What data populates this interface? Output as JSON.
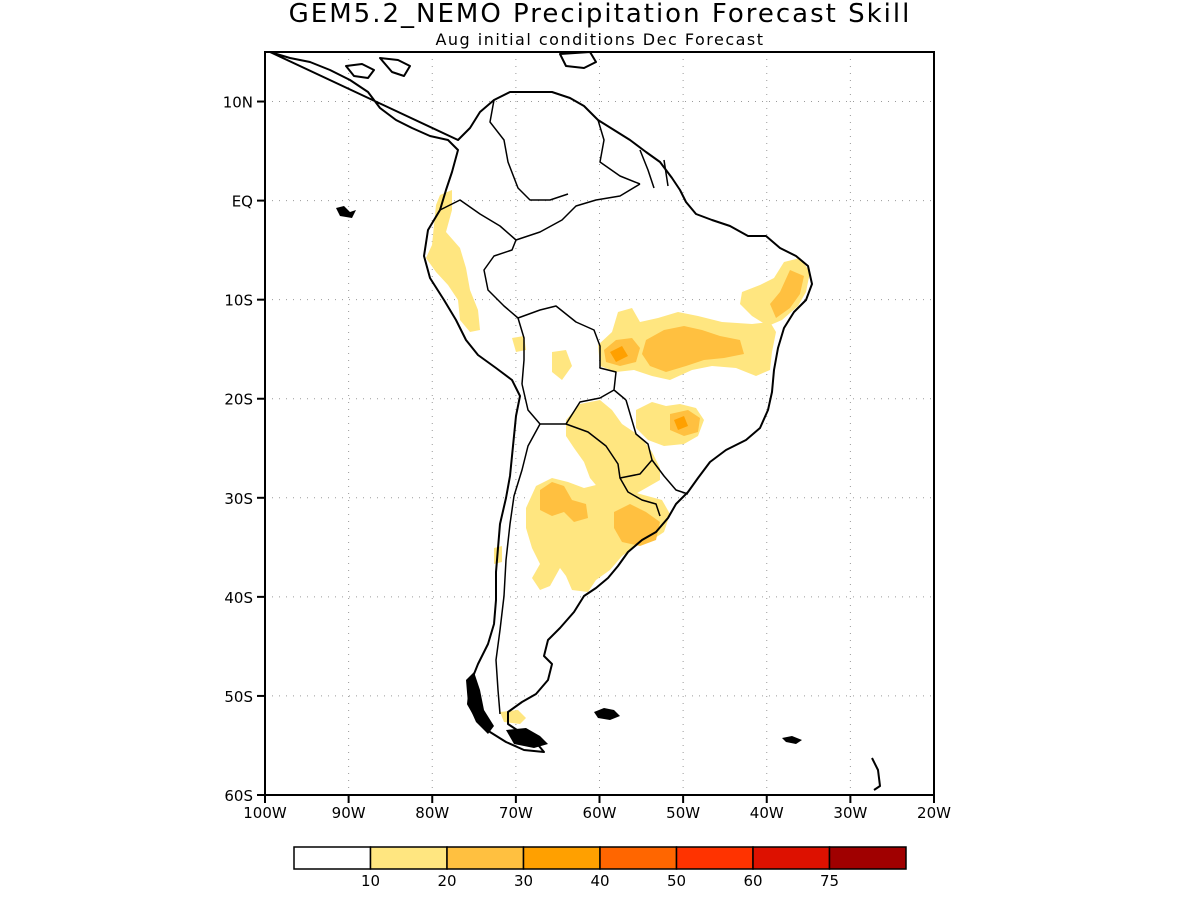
{
  "title": "GEM5.2_NEMO Precipitation Forecast Skill",
  "subtitle": "Aug initial conditions  Dec Forecast",
  "map": {
    "region": "South America",
    "projection": "lat-lon",
    "lon_range": [
      -100,
      -20
    ],
    "lat_range": [
      -60,
      15
    ],
    "gridlines": "dotted",
    "lat_ticks": [
      {
        "value": 10,
        "label": "10N"
      },
      {
        "value": 0,
        "label": "EQ"
      },
      {
        "value": -10,
        "label": "10S"
      },
      {
        "value": -20,
        "label": "20S"
      },
      {
        "value": -30,
        "label": "30S"
      },
      {
        "value": -40,
        "label": "40S"
      },
      {
        "value": -50,
        "label": "50S"
      },
      {
        "value": -60,
        "label": "60S"
      }
    ],
    "lon_ticks": [
      {
        "value": -100,
        "label": "100W"
      },
      {
        "value": -90,
        "label": "90W"
      },
      {
        "value": -80,
        "label": "80W"
      },
      {
        "value": -70,
        "label": "70W"
      },
      {
        "value": -60,
        "label": "60W"
      },
      {
        "value": -50,
        "label": "50W"
      },
      {
        "value": -40,
        "label": "40W"
      },
      {
        "value": -30,
        "label": "30W"
      },
      {
        "value": -20,
        "label": "20W"
      }
    ],
    "skill_regions": [
      {
        "name": "ecuador-peru-coast",
        "level": "10-20"
      },
      {
        "name": "central-brazil",
        "level": "10-20"
      },
      {
        "name": "central-brazil-core",
        "level": "20-30"
      },
      {
        "name": "northeast-brazil",
        "level": "10-20"
      },
      {
        "name": "northeast-brazil-core",
        "level": "20-30"
      },
      {
        "name": "southeast-brazil",
        "level": "10-20"
      },
      {
        "name": "southeast-brazil-core",
        "level": "20-30"
      },
      {
        "name": "paraguay-northern-argentina",
        "level": "10-20"
      },
      {
        "name": "central-argentina",
        "level": "10-20"
      },
      {
        "name": "central-argentina-core",
        "level": "20-30"
      },
      {
        "name": "uruguay",
        "level": "20-30"
      },
      {
        "name": "tierra-del-fuego",
        "level": "10-20"
      }
    ]
  },
  "colorbar": {
    "colors": [
      "#ffffff",
      "#ffe680",
      "#ffc040",
      "#ffa000",
      "#ff6600",
      "#ff3300",
      "#dd1100",
      "#a00000"
    ],
    "labels": [
      "10",
      "20",
      "30",
      "40",
      "50",
      "60",
      "75"
    ]
  }
}
